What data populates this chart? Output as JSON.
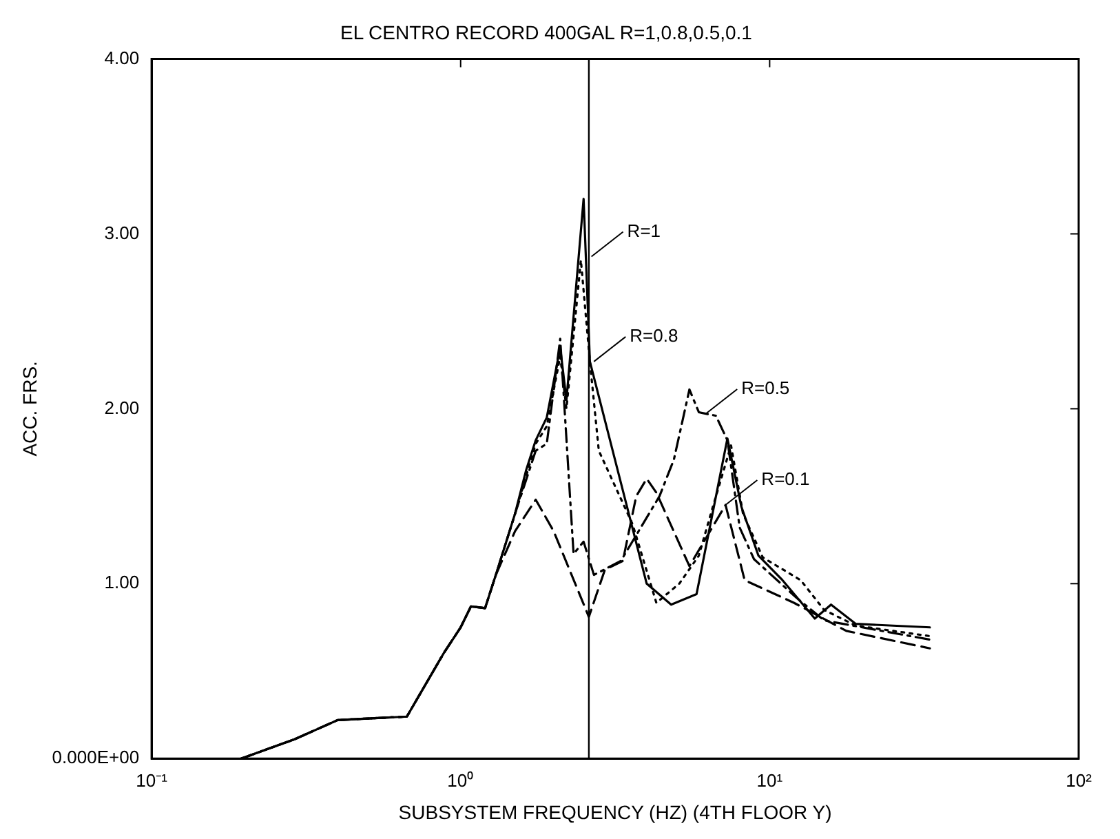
{
  "chart_data": {
    "type": "line",
    "title": "EL CENTRO RECORD 400GAL R=1,0.8,0.5,0.1",
    "xlabel": "SUBSYSTEM FREQUENCY (HZ) (4TH FLOOR Y)",
    "ylabel": "ACC. FRS.",
    "log": "x",
    "xlim": [
      0.1,
      100
    ],
    "ylim": [
      0,
      4
    ],
    "xticks": [
      {
        "value": 0.1,
        "label": "10⁻¹"
      },
      {
        "value": 1,
        "label": "10⁰"
      },
      {
        "value": 10,
        "label": "10¹"
      },
      {
        "value": 100,
        "label": "10²"
      }
    ],
    "yticks": [
      {
        "value": 0,
        "label": "0.000E+00"
      },
      {
        "value": 1,
        "label": "1.00"
      },
      {
        "value": 2,
        "label": "2.00"
      },
      {
        "value": 3,
        "label": "3.00"
      },
      {
        "value": 4,
        "label": "4.00"
      }
    ],
    "grid": false,
    "legend": false,
    "marker": "none",
    "series": [
      {
        "color": "#000000",
        "line_style": "solid",
        "x": [
          0.195,
          0.29,
          0.4,
          0.67,
          0.88,
          1.0,
          1.08,
          1.2,
          1.3,
          1.5,
          1.63,
          1.75,
          1.9,
          2.1,
          2.2,
          2.5,
          2.62,
          4.0,
          4.8,
          5.8,
          6.6,
          7.3,
          8.1,
          9.2,
          11,
          14,
          15.8,
          19,
          33
        ],
        "values": [
          0,
          0.11,
          0.22,
          0.24,
          0.6,
          0.75,
          0.87,
          0.86,
          1.05,
          1.4,
          1.65,
          1.82,
          1.95,
          2.35,
          2.05,
          3.2,
          2.27,
          1.0,
          0.88,
          0.94,
          1.44,
          1.83,
          1.44,
          1.16,
          1.02,
          0.8,
          0.88,
          0.77,
          0.75
        ]
      },
      {
        "color": "#000000",
        "line_style": "dotted",
        "x": [
          0.195,
          0.29,
          0.4,
          0.67,
          0.88,
          1.0,
          1.08,
          1.2,
          1.3,
          1.5,
          1.75,
          1.9,
          2.1,
          2.2,
          2.45,
          2.62,
          2.8,
          3.6,
          4.3,
          5.1,
          5.9,
          6.5,
          7.5,
          8.2,
          9.5,
          12.6,
          15,
          19,
          33
        ],
        "values": [
          0,
          0.11,
          0.22,
          0.24,
          0.6,
          0.75,
          0.87,
          0.86,
          1.05,
          1.4,
          1.8,
          1.9,
          2.3,
          2.0,
          2.85,
          2.27,
          1.76,
          1.34,
          0.89,
          1.0,
          1.16,
          1.42,
          1.79,
          1.4,
          1.15,
          1.02,
          0.85,
          0.76,
          0.7
        ]
      },
      {
        "color": "#000000",
        "line_style": "dashdot",
        "x": [
          0.195,
          0.29,
          0.4,
          0.67,
          0.88,
          1.0,
          1.08,
          1.2,
          1.3,
          1.5,
          1.75,
          1.9,
          2.1,
          2.32,
          2.5,
          2.7,
          3.3,
          4.4,
          4.9,
          5.5,
          5.9,
          6.7,
          7.3,
          8.0,
          8.9,
          12.2,
          15,
          33
        ],
        "values": [
          0,
          0.11,
          0.22,
          0.24,
          0.6,
          0.75,
          0.87,
          0.86,
          1.05,
          1.4,
          1.76,
          1.8,
          2.4,
          1.17,
          1.24,
          1.05,
          1.13,
          1.5,
          1.71,
          2.11,
          1.98,
          1.96,
          1.82,
          1.32,
          1.14,
          0.92,
          0.79,
          0.68
        ]
      },
      {
        "color": "#000000",
        "line_style": "dashed",
        "x": [
          0.195,
          0.29,
          0.4,
          0.67,
          0.88,
          1.0,
          1.08,
          1.2,
          1.3,
          1.5,
          1.75,
          2.0,
          2.6,
          2.93,
          3.35,
          3.7,
          4.0,
          4.3,
          5.5,
          7.2,
          8.3,
          12,
          17.7,
          33
        ],
        "values": [
          0,
          0.11,
          0.22,
          0.24,
          0.6,
          0.75,
          0.87,
          0.86,
          1.05,
          1.3,
          1.48,
          1.3,
          0.81,
          1.08,
          1.13,
          1.5,
          1.6,
          1.52,
          1.1,
          1.45,
          1.02,
          0.89,
          0.73,
          0.63
        ]
      }
    ],
    "ref_lines": [
      {
        "axis": "x",
        "value": 2.6,
        "color": "#000000",
        "line_style": "solid"
      }
    ],
    "annotations": [
      {
        "text": "R=1",
        "x": 2.65,
        "y": 2.87
      },
      {
        "text": "R=0.8",
        "x": 2.7,
        "y": 2.27
      },
      {
        "text": "R=0.5",
        "x": 6.2,
        "y": 1.97
      },
      {
        "text": "R=0.1",
        "x": 7.2,
        "y": 1.45
      }
    ]
  }
}
